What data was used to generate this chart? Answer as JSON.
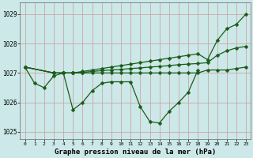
{
  "title": "Graphe pression niveau de la mer (hPa)",
  "x_hours": [
    0,
    1,
    2,
    3,
    4,
    5,
    6,
    7,
    8,
    9,
    10,
    11,
    12,
    13,
    14,
    15,
    16,
    17,
    18,
    19,
    20,
    21,
    22,
    23
  ],
  "series": [
    [
      1027.2,
      1026.65,
      1026.5,
      1026.9,
      1027.0,
      1025.75,
      1026.0,
      1026.4,
      1026.65,
      1026.7,
      1026.7,
      1026.7,
      1025.85,
      1025.35,
      1025.3,
      1025.7,
      1026.0,
      1026.35,
      1027.1,
      null,
      null,
      null,
      null,
      null
    ],
    [
      1027.2,
      null,
      null,
      1027.0,
      1027.0,
      1027.0,
      1027.05,
      1027.1,
      1027.15,
      1027.2,
      1027.25,
      1027.3,
      1027.35,
      1027.4,
      1027.45,
      1027.5,
      1027.55,
      1027.6,
      1027.65,
      1027.45,
      1028.1,
      1028.5,
      1028.65,
      1029.0
    ],
    [
      1027.2,
      null,
      null,
      1027.0,
      1027.0,
      1027.0,
      1027.0,
      1027.0,
      1027.0,
      1027.0,
      1027.0,
      1027.0,
      1027.0,
      1027.0,
      1027.0,
      1027.0,
      1027.0,
      1027.0,
      1027.0,
      1027.1,
      1027.1,
      1027.1,
      1027.15,
      1027.2
    ],
    [
      1027.2,
      null,
      null,
      1027.0,
      1027.0,
      1027.0,
      1027.02,
      1027.05,
      1027.08,
      1027.1,
      1027.12,
      1027.15,
      1027.17,
      1027.2,
      1027.22,
      1027.25,
      1027.28,
      1027.3,
      1027.32,
      1027.35,
      1027.6,
      1027.75,
      1027.85,
      1027.9
    ]
  ],
  "bg_color": "#cce8e8",
  "grid_major_color": "#cc9999",
  "grid_minor_color": "#ddcccc",
  "line_color": "#1a5c1a",
  "marker": "D",
  "marker_size": 2.5,
  "linewidth": 0.9,
  "ylim": [
    1024.75,
    1029.4
  ],
  "yticks": [
    1025,
    1026,
    1027,
    1028,
    1029
  ],
  "xlim": [
    -0.5,
    23.5
  ],
  "title_fontsize": 6.5
}
